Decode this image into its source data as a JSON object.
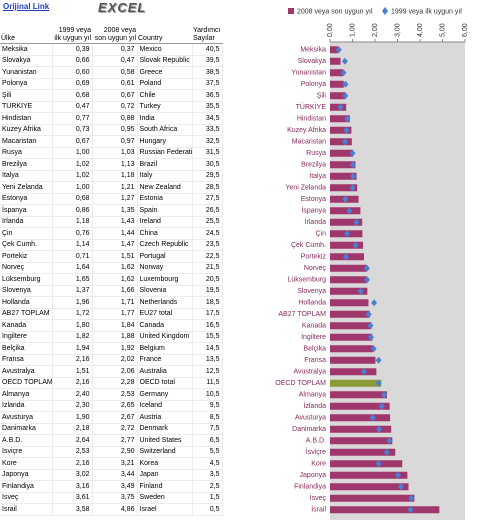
{
  "header": {
    "link": "Orijinal Link",
    "logo": "EXCEL"
  },
  "table": {
    "columns": [
      "Ülke",
      "1999 veya ilk uygun yıl",
      "2008 veya son uygun yıl",
      "Country",
      "Yardımcı Sayılar"
    ],
    "rows": [
      [
        "Meksika",
        "0,39",
        "0,37",
        "Mexico",
        "40,5"
      ],
      [
        "Slovakya",
        "0,66",
        "0,47",
        "Slovak Republic",
        "39,5"
      ],
      [
        "Yunanistan",
        "0,60",
        "0,58",
        "Greece",
        "38,5"
      ],
      [
        "Polonya",
        "0,69",
        "0,61",
        "Poland",
        "37,5"
      ],
      [
        "Şili",
        "0,68",
        "0,67",
        "Chile",
        "36,5"
      ],
      [
        "TÜRKİYE",
        "0,47",
        "0,72",
        "Turkey",
        "35,5"
      ],
      [
        "Hindistan",
        "0,77",
        "0,88",
        "India",
        "34,5"
      ],
      [
        "Kuzey Afrika",
        "0,73",
        "0,95",
        "South Africa",
        "33,5"
      ],
      [
        "Macaristan",
        "0,67",
        "0,97",
        "Hungary",
        "32,5"
      ],
      [
        "Rusya",
        "1,00",
        "1,03",
        "Russian Federation",
        "31,5"
      ],
      [
        "Brezilya",
        "1,02",
        "1,13",
        "Brazil",
        "30,5"
      ],
      [
        "İtalya",
        "1,02",
        "1,18",
        "Italy",
        "29,5"
      ],
      [
        "Yeni Zelanda",
        "1,00",
        "1,21",
        "New Zealand",
        "28,5"
      ],
      [
        "Estonya",
        "0,68",
        "1,27",
        "Estonia",
        "27,5"
      ],
      [
        "İspanya",
        "0,86",
        "1,35",
        "Spain",
        "26,5"
      ],
      [
        "İrlanda",
        "1,18",
        "1,43",
        "Ireland",
        "25,5"
      ],
      [
        "Çin",
        "0,76",
        "1,44",
        "China",
        "24,5"
      ],
      [
        "Çek Cumh.",
        "1,14",
        "1,47",
        "Czech Republic",
        "23,5"
      ],
      [
        "Portekiz",
        "0,71",
        "1,51",
        "Portugal",
        "22,5"
      ],
      [
        "Norveç",
        "1,64",
        "1,62",
        "Norway",
        "21,5"
      ],
      [
        "Lüksemburg",
        "1,65",
        "1,62",
        "Luxembourg",
        "20,5"
      ],
      [
        "Slovenya",
        "1,37",
        "1,66",
        "Slovenia",
        "19,5"
      ],
      [
        "Hollanda",
        "1,96",
        "1,71",
        "Netherlands",
        "18,5"
      ],
      [
        "AB27 TOPLAM",
        "1,72",
        "1,77",
        "EU27 total",
        "17,5"
      ],
      [
        "Kanada",
        "1,80",
        "1,84",
        "Canada",
        "16,5"
      ],
      [
        "İngiltere",
        "1,82",
        "1,88",
        "United Kingdom",
        "15,5"
      ],
      [
        "Belçika",
        "1,94",
        "1,92",
        "Belgium",
        "14,5"
      ],
      [
        "Fransa",
        "2,16",
        "2,02",
        "France",
        "13,5"
      ],
      [
        "Avustralya",
        "1,51",
        "2,06",
        "Australia",
        "12,5"
      ],
      [
        "OECD TOPLAM",
        "2,16",
        "2,28",
        "OECD total",
        "11,5"
      ],
      [
        "Almanya",
        "2,40",
        "2,53",
        "Germany",
        "10,5"
      ],
      [
        "İzlanda",
        "2,30",
        "2,65",
        "Iceland",
        "9,5"
      ],
      [
        "Avusturya",
        "1,90",
        "2,67",
        "Austria",
        "8,5"
      ],
      [
        "Danimarka",
        "2,18",
        "2,72",
        "Denmark",
        "7,5"
      ],
      [
        "A.B.D.",
        "2,64",
        "2,77",
        "United States",
        "6,5"
      ],
      [
        "İsviçre",
        "2,53",
        "2,90",
        "Switzerland",
        "5,5"
      ],
      [
        "Kore",
        "2,16",
        "3,21",
        "Korea",
        "4,5"
      ],
      [
        "Japonya",
        "3,02",
        "3,44",
        "Japan",
        "3,5"
      ],
      [
        "Finlandiya",
        "3,16",
        "3,49",
        "Finland",
        "2,5"
      ],
      [
        "İsveç",
        "3,61",
        "3,75",
        "Sweden",
        "1,5"
      ],
      [
        "İsrail",
        "3,58",
        "4,86",
        "Israel",
        "0,5"
      ]
    ]
  },
  "chart_data": {
    "type": "bar",
    "orientation": "horizontal",
    "categories": [
      "Meksika",
      "Slovakya",
      "Yunanistan",
      "Polonya",
      "Şili",
      "TÜRKİYE",
      "Hindistan",
      "Kuzey Afrika",
      "Macaristan",
      "Rusya",
      "Brezilya",
      "İtalya",
      "Yeni Zelanda",
      "Estonya",
      "İspanya",
      "İrlanda",
      "Çin",
      "Çek Cumh.",
      "Portekiz",
      "Norveç",
      "Lüksemburg",
      "Slovenya",
      "Hollanda",
      "AB27 TOPLAM",
      "Kanada",
      "İngiltere",
      "Belçika",
      "Fransa",
      "Avustralya",
      "OECD TOPLAM",
      "Almanya",
      "İzlanda",
      "Avusturya",
      "Danimarka",
      "A.B.D.",
      "İsviçre",
      "Kore",
      "Japonya",
      "Finlandiya",
      "İsveç",
      "İsrail"
    ],
    "series": [
      {
        "name": "2008 veya son uygun yıl",
        "color": "#a0376c",
        "marker": "bar",
        "colors": [
          "#a0376c",
          "#a0376c",
          "#a0376c",
          "#a0376c",
          "#a0376c",
          "#a0376c",
          "#a0376c",
          "#a0376c",
          "#a0376c",
          "#a0376c",
          "#a0376c",
          "#a0376c",
          "#a0376c",
          "#a0376c",
          "#a0376c",
          "#a0376c",
          "#a0376c",
          "#a0376c",
          "#a0376c",
          "#a0376c",
          "#a0376c",
          "#a0376c",
          "#a0376c",
          "#a0376c",
          "#a0376c",
          "#a0376c",
          "#a0376c",
          "#a0376c",
          "#a0376c",
          "#8c9a36",
          "#a0376c",
          "#a0376c",
          "#a0376c",
          "#a0376c",
          "#a0376c",
          "#a0376c",
          "#a0376c",
          "#a0376c",
          "#a0376c",
          "#a0376c",
          "#a0376c"
        ],
        "values": [
          0.37,
          0.47,
          0.58,
          0.61,
          0.67,
          0.72,
          0.88,
          0.95,
          0.97,
          1.03,
          1.13,
          1.18,
          1.21,
          1.27,
          1.35,
          1.43,
          1.44,
          1.47,
          1.51,
          1.62,
          1.62,
          1.66,
          1.71,
          1.77,
          1.84,
          1.88,
          1.92,
          2.02,
          2.06,
          2.28,
          2.53,
          2.65,
          2.67,
          2.72,
          2.77,
          2.9,
          3.21,
          3.44,
          3.49,
          3.75,
          4.86
        ]
      },
      {
        "name": "1999 veya ilk uygun yıl",
        "color": "#4a7fd4",
        "marker": "diamond",
        "values": [
          0.39,
          0.66,
          0.6,
          0.69,
          0.68,
          0.47,
          0.77,
          0.73,
          0.67,
          1.0,
          1.02,
          1.02,
          1.0,
          0.68,
          0.86,
          1.18,
          0.76,
          1.14,
          0.71,
          1.64,
          1.65,
          1.37,
          1.96,
          1.72,
          1.8,
          1.82,
          1.94,
          2.16,
          1.51,
          2.16,
          2.4,
          2.3,
          1.9,
          2.18,
          2.64,
          2.53,
          2.16,
          3.02,
          3.16,
          3.61,
          3.58
        ]
      }
    ],
    "xlim": [
      0,
      6
    ],
    "xticks": [
      {
        "value": 0,
        "label": "0,00"
      },
      {
        "value": 1,
        "label": "1,00"
      },
      {
        "value": 2,
        "label": "2,00"
      },
      {
        "value": 3,
        "label": "3,00"
      },
      {
        "value": 4,
        "label": "4,00"
      },
      {
        "value": 5,
        "label": "5,00"
      },
      {
        "value": 6,
        "label": "6,00"
      }
    ],
    "axis_position": "top",
    "plot_background": "#d9d9d9",
    "label_color": "#8a2a5c"
  }
}
